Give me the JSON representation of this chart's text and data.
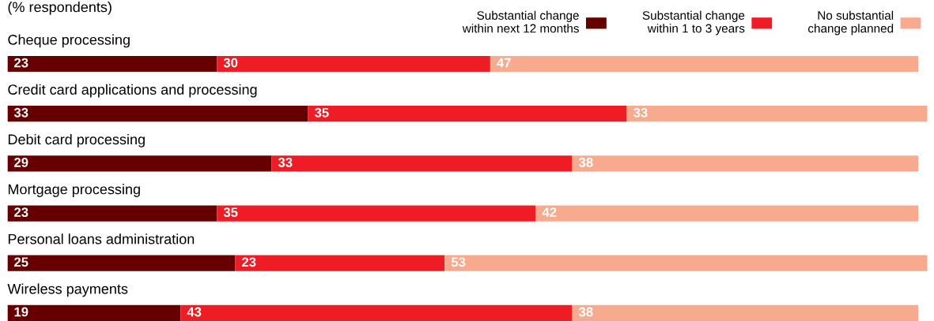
{
  "chart_data": {
    "type": "bar",
    "orientation": "horizontal",
    "stacked": true,
    "title": "(% respondents)",
    "categories": [
      "Cheque processing",
      "Credit card applications and processing",
      "Debit card processing",
      "Mortgage processing",
      "Personal loans administration",
      "Wireless payments"
    ],
    "series": [
      {
        "name": "Substantial change\nwithin next 12 months",
        "color": "#660000",
        "values": [
          23,
          33,
          29,
          23,
          25,
          19
        ],
        "value_labels": [
          "23",
          "33",
          "29",
          "23",
          "25",
          "19"
        ]
      },
      {
        "name": "Substantial change\nwithin 1 to 3 years",
        "color": "#ee1c25",
        "values": [
          30,
          35,
          33,
          35,
          23,
          43
        ],
        "value_labels": [
          "30",
          "35",
          "33",
          "35",
          "23",
          "43"
        ]
      },
      {
        "name": "No substantial\nchange planned",
        "color": "#f7aa8e",
        "values": [
          47,
          33,
          38,
          42,
          53,
          38
        ],
        "value_labels": [
          "47",
          "33",
          "38",
          "42",
          "53",
          "38"
        ]
      }
    ],
    "legend": "top right"
  }
}
